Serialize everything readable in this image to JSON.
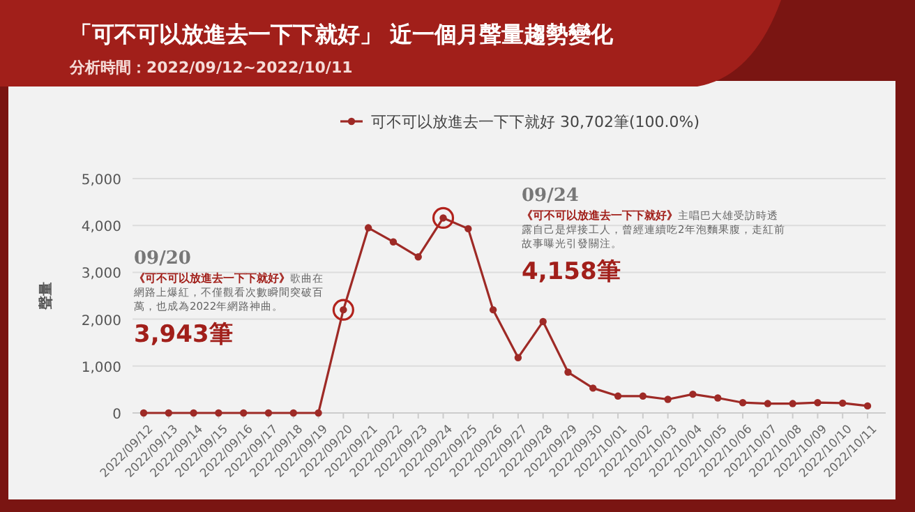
{
  "chart_data": {
    "type": "line",
    "title": "「可不可以放進去一下下就好」 近一個月聲量趨勢變化",
    "subtitle": "分析時間：2022/09/12~2022/10/11",
    "ylabel": "聲量",
    "categories": [
      "2022/09/12",
      "2022/09/13",
      "2022/09/14",
      "2022/09/15",
      "2022/09/16",
      "2022/09/17",
      "2022/09/18",
      "2022/09/19",
      "2022/09/20",
      "2022/09/21",
      "2022/09/22",
      "2022/09/23",
      "2022/09/24",
      "2022/09/25",
      "2022/09/26",
      "2022/09/27",
      "2022/09/28",
      "2022/09/29",
      "2022/09/30",
      "2022/10/01",
      "2022/10/02",
      "2022/10/03",
      "2022/10/04",
      "2022/10/05",
      "2022/10/06",
      "2022/10/07",
      "2022/10/08",
      "2022/10/09",
      "2022/10/10",
      "2022/10/11"
    ],
    "series": [
      {
        "name": "可不可以放進去一下下就好 30,702筆(100.0%)",
        "color": "#9e2a26",
        "values": [
          0,
          0,
          0,
          0,
          0,
          0,
          0,
          0,
          2200,
          3950,
          3650,
          3330,
          4160,
          3930,
          2200,
          1180,
          1950,
          870,
          530,
          360,
          360,
          290,
          400,
          320,
          220,
          200,
          200,
          220,
          210,
          150
        ]
      },
      {
        "type": "scatter",
        "color": "#b2221c",
        "x": [
          "2022/09/20",
          "2022/09/24"
        ],
        "values": [
          2200,
          4160
        ]
      }
    ],
    "ylim": [
      0,
      5000
    ],
    "yticks": [
      {
        "value": 0,
        "label": "0"
      },
      {
        "value": 1000,
        "label": "1,000"
      },
      {
        "value": 2000,
        "label": "2,000"
      },
      {
        "value": 3000,
        "label": "3,000"
      },
      {
        "value": 4000,
        "label": "4,000"
      },
      {
        "value": 5000,
        "label": "5,000"
      }
    ],
    "grid": "y",
    "legend": "top",
    "marker": "circle",
    "line_style": "solid",
    "annotations": [
      "09/20",
      "《可不可以放進去一下下就好》",
      "歌曲在網路上爆紅，不僅觀看次數瞬間突破百萬，也成為2022年網路神曲。",
      "3,943筆",
      "09/24",
      "《可不可以放進去一下下就好》",
      "主唱巴大雄受訪時透露自己是焊接工人，曾經連續吃2年泡麵果腹，走紅前故事曝光引發關注。",
      "4,158筆"
    ]
  }
}
